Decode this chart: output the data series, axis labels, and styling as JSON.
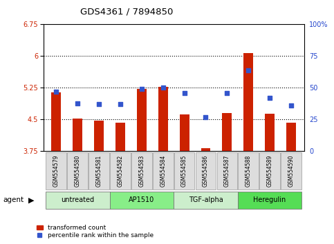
{
  "title": "GDS4361 / 7894850",
  "samples": [
    "GSM554579",
    "GSM554580",
    "GSM554581",
    "GSM554582",
    "GSM554583",
    "GSM554584",
    "GSM554585",
    "GSM554586",
    "GSM554587",
    "GSM554588",
    "GSM554589",
    "GSM554590"
  ],
  "transformed_count": [
    5.15,
    4.52,
    4.48,
    4.43,
    5.22,
    5.28,
    4.62,
    3.82,
    4.65,
    6.07,
    4.63,
    4.42
  ],
  "percentile_rank": [
    47,
    38,
    37,
    37,
    49,
    50,
    46,
    27,
    46,
    64,
    42,
    36
  ],
  "ylim_left": [
    3.75,
    6.75
  ],
  "ylim_right": [
    0,
    100
  ],
  "yticks_left": [
    3.75,
    4.5,
    5.25,
    6.0,
    6.75
  ],
  "yticks_right": [
    0,
    25,
    50,
    75,
    100
  ],
  "ytick_labels_left": [
    "3.75",
    "4.5",
    "5.25",
    "6",
    "6.75"
  ],
  "ytick_labels_right": [
    "0",
    "25",
    "50",
    "75",
    "100%"
  ],
  "hlines": [
    4.5,
    5.25,
    6.0
  ],
  "bar_color": "#cc2200",
  "dot_color": "#3355cc",
  "bar_bottom": 3.75,
  "agent_groups": [
    {
      "label": "untreated",
      "start": 0,
      "end": 3,
      "color": "#cceecc"
    },
    {
      "label": "AP1510",
      "start": 3,
      "end": 6,
      "color": "#88ee88"
    },
    {
      "label": "TGF-alpha",
      "start": 6,
      "end": 9,
      "color": "#cceecc"
    },
    {
      "label": "Heregulin",
      "start": 9,
      "end": 12,
      "color": "#55dd55"
    }
  ],
  "legend_bar_label": "transformed count",
  "legend_dot_label": "percentile rank within the sample",
  "agent_label": "agent",
  "bg_color": "#ffffff",
  "plot_bg": "#ffffff",
  "tick_bg": "#dddddd",
  "tick_label_color_left": "#cc2200",
  "tick_label_color_right": "#2244cc",
  "bar_width": 0.45
}
